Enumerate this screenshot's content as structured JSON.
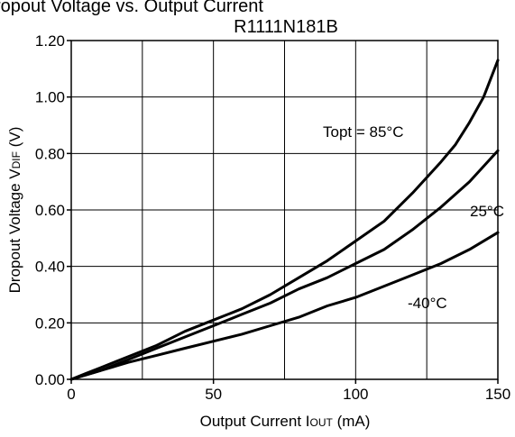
{
  "chart_data": {
    "type": "line",
    "title_partial": "ropout Voltage vs. Output Current",
    "title": "R1111N181B",
    "xlabel": "Output Current I",
    "xlabel_sub": "OUT",
    "xlabel_unit": " (mA)",
    "ylabel": "Dropout Voltage V",
    "ylabel_sub": "DIF",
    "ylabel_unit": " (V)",
    "xlim": [
      0,
      150
    ],
    "ylim": [
      0,
      1.2
    ],
    "x_ticks": [
      0,
      50,
      100,
      150
    ],
    "x_tick_labels": [
      "0",
      "50",
      "100",
      "150"
    ],
    "y_ticks": [
      0,
      0.2,
      0.4,
      0.6,
      0.8,
      1.0,
      1.2
    ],
    "y_tick_labels": [
      "0.00",
      "0.20",
      "0.40",
      "0.60",
      "0.80",
      "1.00",
      "1.20"
    ],
    "x_grid_step": 25,
    "y_grid_step": 0.2,
    "grid": true,
    "series": [
      {
        "name": "Topt = 85°C",
        "x": [
          0,
          5,
          10,
          20,
          30,
          40,
          50,
          60,
          70,
          80,
          90,
          100,
          110,
          120,
          130,
          135,
          140,
          145,
          150
        ],
        "y": [
          0.0,
          0.02,
          0.04,
          0.08,
          0.12,
          0.17,
          0.21,
          0.25,
          0.3,
          0.36,
          0.42,
          0.49,
          0.56,
          0.66,
          0.77,
          0.83,
          0.91,
          1.0,
          1.13
        ]
      },
      {
        "name": "25°C",
        "x": [
          0,
          10,
          20,
          30,
          40,
          50,
          60,
          70,
          80,
          90,
          100,
          110,
          120,
          130,
          140,
          150
        ],
        "y": [
          0.0,
          0.03,
          0.07,
          0.11,
          0.15,
          0.19,
          0.23,
          0.27,
          0.32,
          0.36,
          0.41,
          0.46,
          0.53,
          0.61,
          0.7,
          0.81
        ]
      },
      {
        "name": "-40°C",
        "x": [
          0,
          10,
          20,
          30,
          40,
          50,
          60,
          70,
          80,
          90,
          100,
          110,
          120,
          130,
          140,
          150
        ],
        "y": [
          0.0,
          0.03,
          0.06,
          0.085,
          0.11,
          0.135,
          0.16,
          0.19,
          0.22,
          0.26,
          0.29,
          0.33,
          0.37,
          0.41,
          0.46,
          0.52
        ]
      }
    ],
    "line_color": "#000000",
    "grid_color": "#000000",
    "background": "#ffffff"
  }
}
